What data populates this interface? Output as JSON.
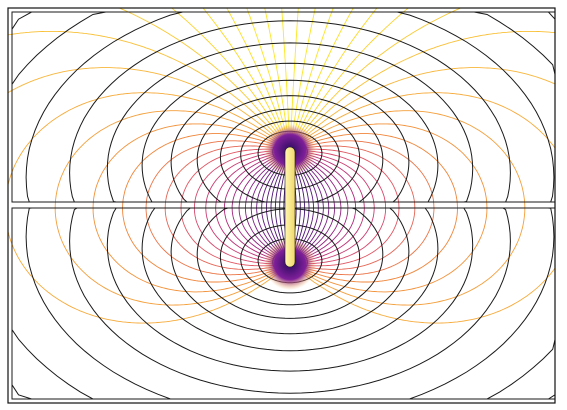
{
  "diagram": {
    "kind": "dipole field-line plot",
    "line_families": [
      "contour-lines",
      "field-lines"
    ],
    "contour_line_color": "#1a1a1a",
    "field_line_palette": [
      "#fde725",
      "#f8b53b",
      "#f0843a",
      "#dd4e6a",
      "#b1287a",
      "#7a1f87",
      "#3b0f70"
    ],
    "source_rod_gradient": [
      "#fff6b0",
      "#f2d96b"
    ],
    "pole_glow_colors": [
      "#f6a33a",
      "#7f1f9a",
      "#2b0b5e"
    ],
    "frame_color": "#111111",
    "background": "#ffffff"
  }
}
